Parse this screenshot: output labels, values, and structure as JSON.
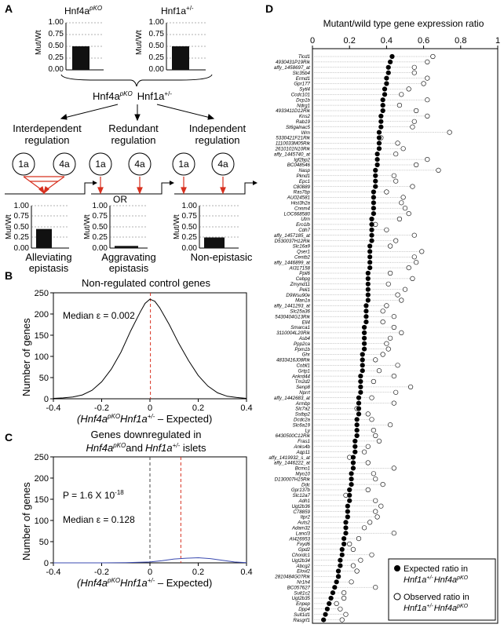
{
  "panel_labels": {
    "a": "A",
    "b": "B",
    "c": "C",
    "d": "D"
  },
  "panel_a": {
    "left_bar_title": "Hnf4a",
    "left_bar_title_sup": "pKO",
    "right_bar_title": "Hnf1a",
    "right_bar_title_sup": "+/-",
    "y_label": "Mut/Wt",
    "ticks": [
      "1.00",
      "0.75",
      "0.50",
      "0.25",
      "0.00"
    ],
    "left_bar_value": 0.5,
    "right_bar_value": 0.5,
    "combined_a": "Hnf4a",
    "combined_a_sup": "pKO",
    "combined_b": "Hnf1a",
    "combined_b_sup": "+/-",
    "regulation_top": [
      "Interdependent",
      "Redundant",
      "Independent"
    ],
    "regulation_bottom": [
      "regulation",
      "regulation",
      "regulation"
    ],
    "or_label": "OR",
    "circle_labels": [
      "1a",
      "4a"
    ],
    "outcome_values": [
      0.45,
      0.05,
      0.25
    ],
    "outcome_top": [
      "Alleviating",
      "Aggravating",
      "Non-epistasic"
    ],
    "outcome_bottom": [
      "epistasis",
      "epistasis",
      ""
    ]
  },
  "panel_b": {
    "title": "Non-regulated control genes",
    "median_label": "Median ε = 0.002",
    "ylabel": "Number of genes",
    "xlabel_pre": "(Hnf4a",
    "xlabel_sup1": "pKO",
    "xlabel_mid": "Hnf1a",
    "xlabel_sup2": "+/-",
    "xlabel_post": " – Expected)",
    "yticks": [
      "0",
      "50",
      "100",
      "150",
      "200",
      "250"
    ],
    "xticks": [
      "-0.4",
      "-0.2",
      "0",
      "0.2",
      "0.4"
    ]
  },
  "panel_c": {
    "title_line1": "Genes downregulated in",
    "title_a": "Hnf4a",
    "title_a_sup": "pKO",
    "title_and": "and",
    "title_b": "Hnf1a",
    "title_b_sup": "+/-",
    "title_end": " islets",
    "p_label": "P = 1.6 X 10",
    "p_exp": "-18",
    "median_label": "Median ε = 0.128",
    "ylabel": "Number of genes",
    "xlabel_pre": "(Hnf4a",
    "xlabel_sup1": "pKO",
    "xlabel_mid": "Hnf1a",
    "xlabel_sup2": "+/-",
    "xlabel_post": " – Expected)",
    "yticks": [
      "0",
      "50",
      "100",
      "150",
      "200",
      "250"
    ],
    "xticks": [
      "-0.4",
      "-0.2",
      "0",
      "0.2",
      "0.4"
    ]
  },
  "panel_d": {
    "title": "Mutant/wild type gene expression ratio",
    "xticks": [
      "0",
      "0.2",
      "0.4",
      "0.6",
      "0.8",
      "1"
    ],
    "legend_expected": "Expected ratio in",
    "legend_expected_2a": "Hnf1a",
    "legend_expected_2a_sup": "+/-",
    "legend_expected_2b": "Hnf4a",
    "legend_expected_2b_sup": "pKO",
    "legend_observed": "Observed ratio in",
    "legend_observed_2a": "Hnf1a",
    "legend_observed_2a_sup": "+/-",
    "legend_observed_2b": "Hnf4a",
    "legend_observed_2b_sup": "pKO"
  },
  "chart_data": [
    {
      "type": "line",
      "xlim": [
        -0.4,
        0.4
      ],
      "ylim": [
        0,
        250
      ],
      "x": [
        -0.4,
        -0.36,
        -0.32,
        -0.28,
        -0.24,
        -0.2,
        -0.16,
        -0.12,
        -0.08,
        -0.04,
        -0.02,
        0,
        0.02,
        0.04,
        0.08,
        0.12,
        0.16,
        0.2,
        0.24,
        0.28,
        0.32,
        0.36,
        0.4
      ],
      "y": [
        1,
        2,
        4,
        9,
        20,
        40,
        70,
        110,
        160,
        205,
        225,
        235,
        230,
        215,
        175,
        130,
        90,
        55,
        30,
        14,
        6,
        3,
        1
      ],
      "median_line": 0.002,
      "zero_line": 0
    },
    {
      "type": "line",
      "xlim": [
        -0.4,
        0.4
      ],
      "ylim": [
        0,
        250
      ],
      "x": [
        -0.4,
        -0.3,
        -0.2,
        -0.1,
        0,
        0.05,
        0.1,
        0.15,
        0.2,
        0.25,
        0.3,
        0.35,
        0.4
      ],
      "y": [
        0,
        0,
        0,
        0.5,
        2,
        5,
        9,
        11,
        12,
        10,
        6,
        2,
        0.5
      ],
      "median_line": 0.128,
      "zero_line": 0
    },
    {
      "type": "scatter",
      "xlim": [
        0,
        1
      ],
      "genes": [
        "Tlcd1",
        "4930431P19Rik",
        "affy_1458697_at",
        "Slc35b4",
        "Ermd1",
        "Gpr177",
        "Sytl4",
        "Ccdc101",
        "Dcp1b",
        "Ndrg1",
        "4933411D12Rik",
        "Kns2",
        "Rab19",
        "St6galnac5",
        "Wrn",
        "5330421F21Rik",
        "1110033M05Rik",
        "2610101N10Rik",
        "affy_1445740_at",
        "Igf2bp2",
        "BC048546",
        "Nasp",
        "Pknd1",
        "Epc1",
        "C80889",
        "Ras7bp",
        "AU024581",
        "Hist3h2a",
        "Cnnm4",
        "LOC668580",
        "Utrn",
        "Ero1lb",
        "Cdh7",
        "affy_1457185_at",
        "D530037H12Rik",
        "Slc16a9",
        "Qser1",
        "Centb2",
        "affy_1446899_at",
        "AI317158",
        "Ppil6",
        "Cebpg",
        "Zmynd11",
        "Peli1",
        "D9Wsu90e",
        "Man1a",
        "affy_1441293_at",
        "Slc25a36",
        "5430404G13Rik",
        "Ell4",
        "Smarca1",
        "3110004L20Rik",
        "Asb4",
        "Ppp2ca",
        "Ppm1b",
        "Ghr",
        "4833416J08Rik",
        "Cobll1",
        "Grtp1",
        "Ankrd44",
        "Tm2d2",
        "Senp8",
        "Nprrt",
        "affy_1442683_at",
        "Armbp",
        "Slc7a2",
        "Sstbp2",
        "Dcdc2a",
        "Slc6a19",
        "Ly",
        "6430500C12Rik",
        "Fras1",
        "Anks4b",
        "Aqp11",
        "affy_1419932_s_at",
        "affy_1446222_at",
        "Bcmo1",
        "Myo10",
        "D130007H15Rik",
        "Ddc",
        "Gpr137b",
        "Slc12a7",
        "Adh1",
        "Ugt2b36",
        "C78859",
        "Itpr2",
        "Auts2",
        "Adam32",
        "Lancl3",
        "AI426953",
        "Fxyd6",
        "Gpd2",
        "Chordc1",
        "Ugt2b34",
        "Abcg2",
        "Elovl2",
        "2810484G07Rik",
        "Nr1h4",
        "BC057627",
        "Sult1c2",
        "Ugt2b35",
        "Enpep",
        "Dpp4",
        "Sult1d1",
        "Rasgrf1"
      ],
      "expected": [
        0.43,
        0.42,
        0.41,
        0.41,
        0.4,
        0.4,
        0.39,
        0.39,
        0.38,
        0.38,
        0.38,
        0.37,
        0.37,
        0.37,
        0.36,
        0.36,
        0.36,
        0.36,
        0.35,
        0.35,
        0.35,
        0.34,
        0.34,
        0.34,
        0.34,
        0.33,
        0.33,
        0.33,
        0.33,
        0.33,
        0.32,
        0.32,
        0.32,
        0.32,
        0.32,
        0.31,
        0.31,
        0.31,
        0.31,
        0.31,
        0.3,
        0.3,
        0.3,
        0.3,
        0.3,
        0.3,
        0.29,
        0.29,
        0.29,
        0.29,
        0.28,
        0.28,
        0.28,
        0.28,
        0.28,
        0.27,
        0.27,
        0.27,
        0.27,
        0.26,
        0.26,
        0.26,
        0.26,
        0.25,
        0.25,
        0.25,
        0.25,
        0.24,
        0.24,
        0.24,
        0.24,
        0.23,
        0.23,
        0.23,
        0.22,
        0.22,
        0.22,
        0.21,
        0.21,
        0.21,
        0.2,
        0.2,
        0.2,
        0.19,
        0.19,
        0.19,
        0.18,
        0.18,
        0.18,
        0.17,
        0.17,
        0.16,
        0.16,
        0.15,
        0.15,
        0.14,
        0.14,
        0.13,
        0.12,
        0.11,
        0.1,
        0.09,
        0.08,
        0.07,
        0.06
      ],
      "observed": [
        0.65,
        0.62,
        0.55,
        0.55,
        0.62,
        0.6,
        0.52,
        0.48,
        0.62,
        0.47,
        0.56,
        0.62,
        0.55,
        0.54,
        0.74,
        0.37,
        0.46,
        0.49,
        0.45,
        0.62,
        0.56,
        0.68,
        0.44,
        0.45,
        0.54,
        0.4,
        0.49,
        0.48,
        0.5,
        0.52,
        0.47,
        0.34,
        0.4,
        0.55,
        0.45,
        0.42,
        0.59,
        0.55,
        0.56,
        0.52,
        0.42,
        0.54,
        0.41,
        0.5,
        0.46,
        0.48,
        0.4,
        0.38,
        0.44,
        0.38,
        0.44,
        0.48,
        0.42,
        0.4,
        0.41,
        0.38,
        0.34,
        0.46,
        0.36,
        0.44,
        0.33,
        0.53,
        0.45,
        0.32,
        0.44,
        0.24,
        0.3,
        0.32,
        0.42,
        0.33,
        0.34,
        0.36,
        0.3,
        0.28,
        0.2,
        0.3,
        0.44,
        0.33,
        0.34,
        0.38,
        0.3,
        0.18,
        0.34,
        0.37,
        0.34,
        0.35,
        0.31,
        0.28,
        0.44,
        0.25,
        0.2,
        0.22,
        0.32,
        0.26,
        0.22,
        0.24,
        0.14,
        0.21,
        0.34,
        0.17,
        0.17,
        0.13,
        0.15,
        0.18,
        0.16
      ]
    }
  ]
}
